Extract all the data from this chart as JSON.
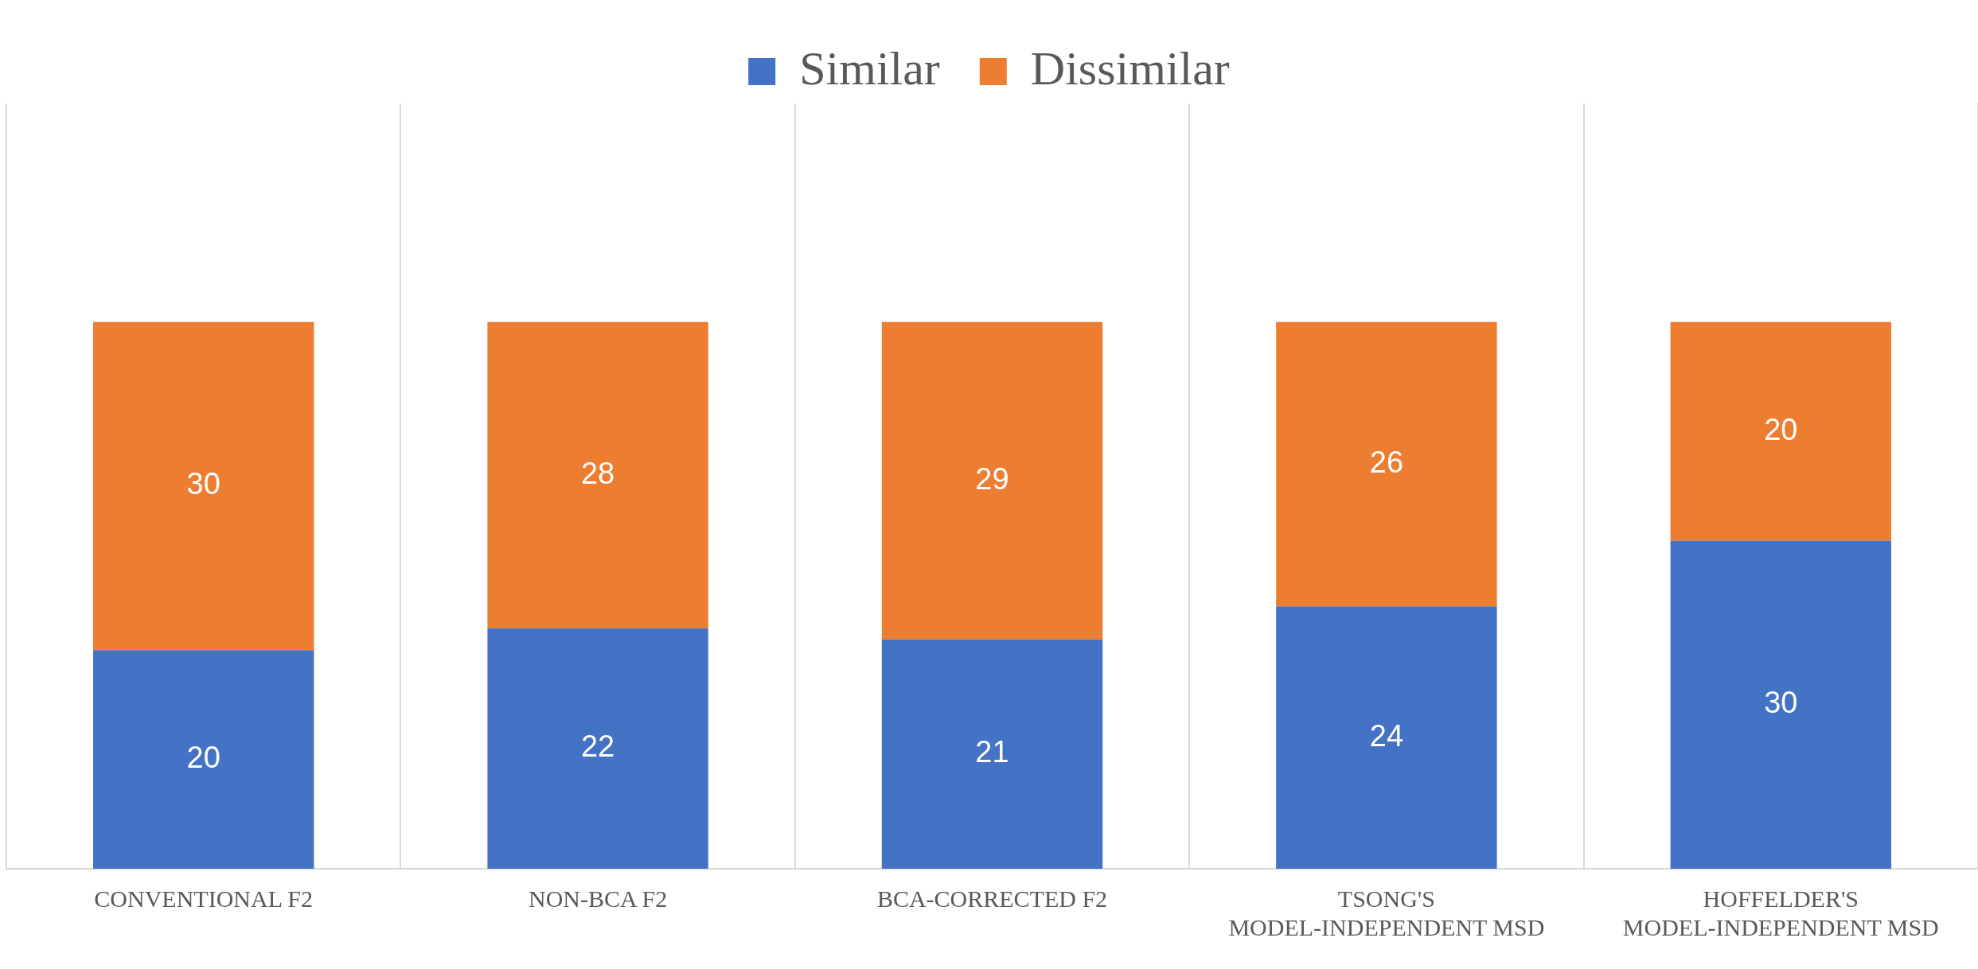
{
  "chart_data": {
    "type": "bar",
    "stacked": true,
    "categories": [
      "CONVENTIONAL F2",
      "NON-BCA F2",
      "BCA-CORRECTED F2",
      "TSONG'S MODEL-INDEPENDENT MSD",
      "HOFFELDER'S MODEL-INDEPENDENT MSD"
    ],
    "series": [
      {
        "name": "Similar",
        "color": "#4472c4",
        "values": [
          20,
          22,
          21,
          24,
          30
        ]
      },
      {
        "name": "Dissimilar",
        "color": "#ed7d31",
        "values": [
          30,
          28,
          29,
          26,
          20
        ]
      }
    ],
    "data_labels": true,
    "grid": "x",
    "legend": "top",
    "relative": false
  }
}
